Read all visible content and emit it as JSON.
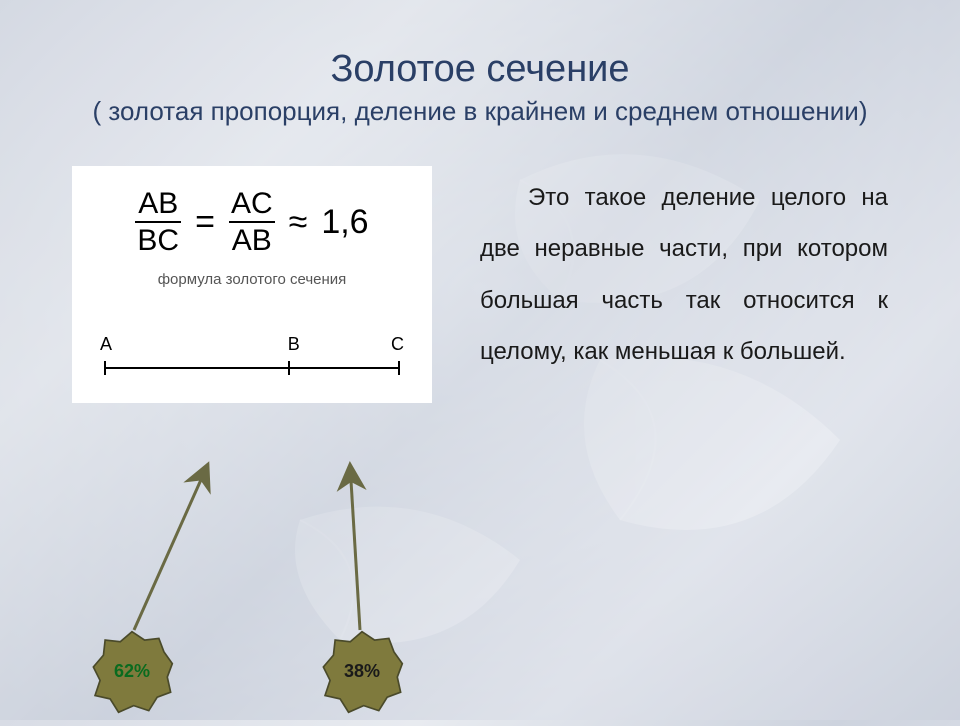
{
  "title": "Золотое сечение",
  "subtitle": "( золотая пропорция, деление в крайнем и среднем отношении)",
  "formula": {
    "frac1_num": "AB",
    "frac1_den": "BC",
    "eq": "=",
    "frac2_num": "AC",
    "frac2_den": "AB",
    "approx": "≈",
    "value": "1,6",
    "caption": "формула золотого сечения"
  },
  "segment": {
    "A": "A",
    "B": "B",
    "C": "C",
    "b_position_pct": 62,
    "line_color": "#000000"
  },
  "badges": {
    "left": {
      "label": "62%",
      "fill": "#7f7a3d",
      "stroke": "#4a4a2a",
      "text_color": "#0a6b1f"
    },
    "right": {
      "label": "38%",
      "fill": "#7f7a3d",
      "stroke": "#4a4a2a",
      "text_color": "#1a1a1a"
    }
  },
  "arrow_color": "#6a6a44",
  "body_text": "Это такое деление целого на две неравные части, при котором большая часть так относится к целому, как меньшая к большей.",
  "colors": {
    "title": "#2a3f66",
    "card_bg": "#ffffff",
    "text": "#1a1a1a"
  }
}
